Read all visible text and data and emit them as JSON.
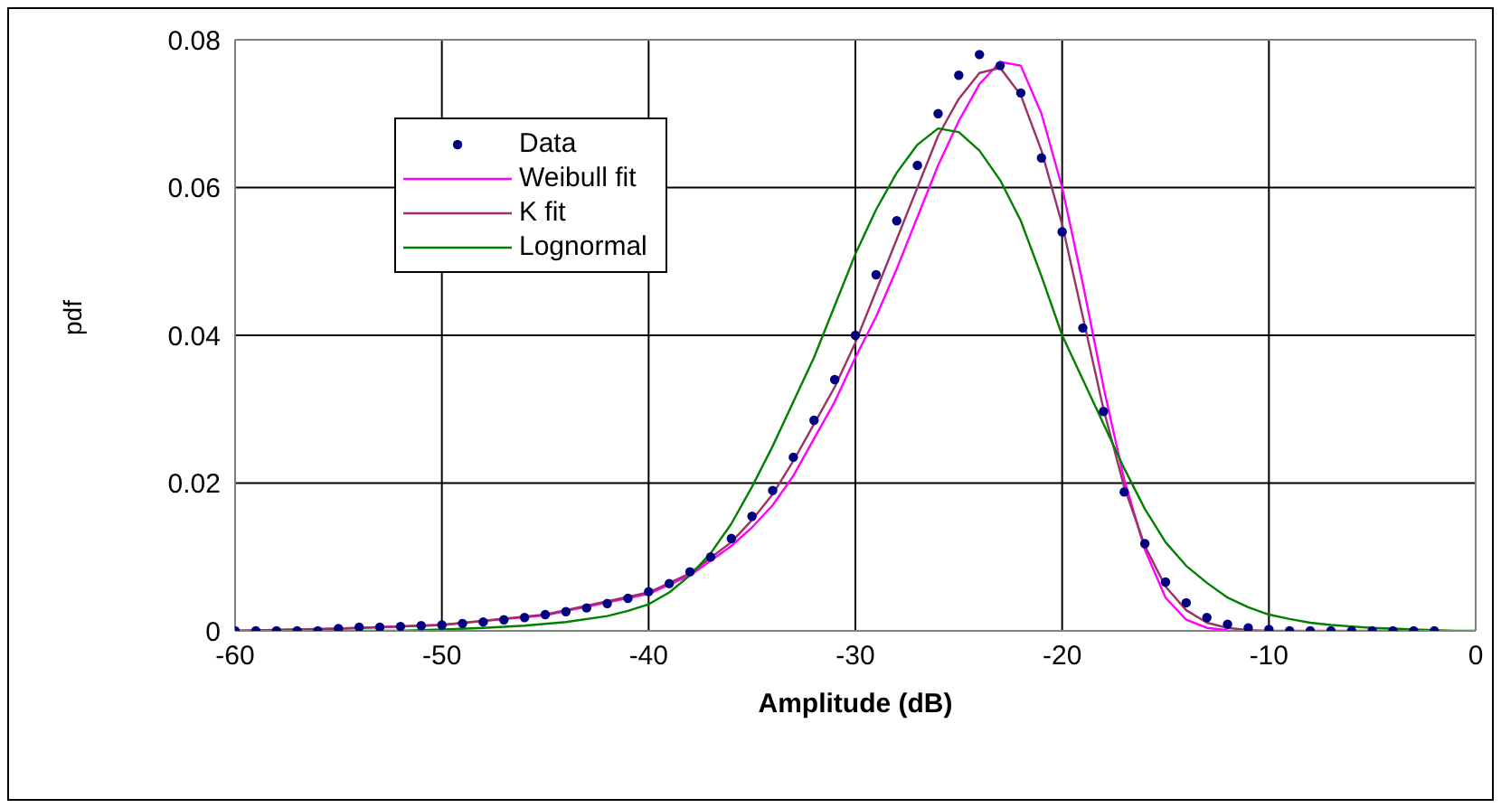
{
  "chart_data": {
    "type": "line",
    "xlabel": "Amplitude (dB)",
    "ylabel": "pdf",
    "xlim": [
      -60,
      0
    ],
    "xticks": [
      -60,
      -50,
      -40,
      -30,
      -20,
      -10,
      0
    ],
    "ylim": [
      0,
      0.08
    ],
    "yticks": [
      0,
      0.02,
      0.04,
      0.06,
      0.08
    ],
    "grid": true,
    "legend": "top left",
    "series": [
      {
        "name": "Data",
        "type": "scatter",
        "marker": "circle",
        "color": "#000080",
        "x": [
          -60,
          -59,
          -58,
          -57,
          -56,
          -55,
          -54,
          -53,
          -52,
          -51,
          -50,
          -49,
          -48,
          -47,
          -46,
          -45,
          -44,
          -43,
          -42,
          -41,
          -40,
          -39,
          -38,
          -37,
          -36,
          -35,
          -34,
          -33,
          -32,
          -31,
          -30,
          -29,
          -28,
          -27,
          -26,
          -25,
          -24,
          -23,
          -22,
          -21,
          -20,
          -19,
          -18,
          -17,
          -16,
          -15,
          -14,
          -13,
          -12,
          -11,
          -10,
          -9,
          -8,
          -7,
          -6,
          -5,
          -4,
          -3,
          -2
        ],
        "values": [
          0,
          0,
          0,
          0,
          0,
          0.0003,
          0.0005,
          0.0005,
          0.0006,
          0.0007,
          0.0008,
          0.001,
          0.0012,
          0.0015,
          0.0018,
          0.0022,
          0.0026,
          0.0031,
          0.0037,
          0.0044,
          0.0053,
          0.0064,
          0.008,
          0.01,
          0.0125,
          0.0155,
          0.019,
          0.0235,
          0.0285,
          0.034,
          0.04,
          0.0482,
          0.0555,
          0.063,
          0.07,
          0.0752,
          0.078,
          0.0765,
          0.0728,
          0.064,
          0.054,
          0.041,
          0.0297,
          0.0188,
          0.0118,
          0.0066,
          0.0038,
          0.0018,
          0.0009,
          0.0004,
          0.0002,
          0,
          0,
          0,
          0,
          0,
          0,
          0,
          0
        ]
      },
      {
        "name": "Weibull fit",
        "marker": "none",
        "color": "#ff00ff",
        "x": [
          -60,
          -55,
          -50,
          -45,
          -40,
          -38,
          -36,
          -35,
          -34,
          -33,
          -32,
          -31,
          -30,
          -29,
          -28,
          -27,
          -26,
          -25,
          -24,
          -23,
          -22,
          -21,
          -20,
          -19,
          -18,
          -17,
          -16,
          -15,
          -14,
          -13,
          -12
        ],
        "values": [
          0,
          0.0003,
          0.0008,
          0.0021,
          0.005,
          0.0075,
          0.0115,
          0.014,
          0.017,
          0.021,
          0.026,
          0.031,
          0.037,
          0.0425,
          0.049,
          0.056,
          0.063,
          0.069,
          0.074,
          0.077,
          0.0765,
          0.07,
          0.06,
          0.047,
          0.033,
          0.0205,
          0.011,
          0.0045,
          0.0015,
          0.0004,
          0.0001
        ]
      },
      {
        "name": "K fit",
        "marker": "none",
        "color": "#993366",
        "x": [
          -60,
          -55,
          -50,
          -45,
          -40,
          -38,
          -36,
          -35,
          -34,
          -33,
          -32,
          -31,
          -30,
          -29,
          -28,
          -27,
          -26,
          -25,
          -24,
          -23,
          -22,
          -21,
          -20,
          -19,
          -18,
          -17,
          -16,
          -15,
          -14,
          -13,
          -12,
          -11,
          -10,
          -5,
          -2
        ],
        "values": [
          0,
          0.0003,
          0.0008,
          0.0022,
          0.0052,
          0.0078,
          0.012,
          0.015,
          0.0185,
          0.023,
          0.028,
          0.033,
          0.039,
          0.046,
          0.053,
          0.06,
          0.067,
          0.072,
          0.0755,
          0.0762,
          0.0725,
          0.065,
          0.055,
          0.0425,
          0.03,
          0.0195,
          0.0115,
          0.006,
          0.0028,
          0.0011,
          0.0004,
          0.0001,
          0,
          0,
          0
        ]
      },
      {
        "name": "Lognormal",
        "marker": "none",
        "color": "#008000",
        "x": [
          -60,
          -52,
          -50,
          -48,
          -46,
          -44,
          -42,
          -41,
          -40,
          -39,
          -38,
          -37,
          -36,
          -35,
          -34,
          -33,
          -32,
          -31,
          -30,
          -29,
          -28,
          -27,
          -26,
          -25,
          -24,
          -23,
          -22,
          -21,
          -20,
          -19,
          -18,
          -17,
          -16,
          -15,
          -14,
          -13,
          -12,
          -11,
          -10,
          -9,
          -8,
          -7,
          -6,
          -5,
          -4,
          -3,
          -2,
          -1,
          0
        ],
        "values": [
          0,
          0,
          0.0002,
          0.0004,
          0.0007,
          0.0012,
          0.002,
          0.0027,
          0.0036,
          0.0052,
          0.0075,
          0.0105,
          0.0145,
          0.0195,
          0.025,
          0.031,
          0.037,
          0.044,
          0.051,
          0.057,
          0.062,
          0.0658,
          0.068,
          0.0675,
          0.065,
          0.061,
          0.0555,
          0.048,
          0.04,
          0.034,
          0.028,
          0.022,
          0.0165,
          0.012,
          0.0088,
          0.0065,
          0.0045,
          0.0032,
          0.0022,
          0.0016,
          0.0011,
          0.0008,
          0.0006,
          0.0004,
          0.0003,
          0.0002,
          0.0001,
          0,
          0
        ]
      }
    ]
  }
}
